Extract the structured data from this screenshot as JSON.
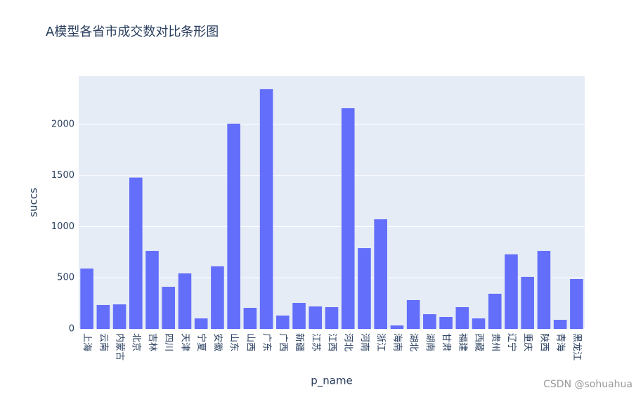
{
  "chart_data": {
    "type": "bar",
    "title": "A模型各省市成交数对比条形图",
    "x_label": "p_name",
    "y_label": "succs",
    "categories": [
      "上海",
      "云南",
      "内蒙古",
      "北京",
      "吉林",
      "四川",
      "天津",
      "宁夏",
      "安徽",
      "山东",
      "山西",
      "广东",
      "广西",
      "新疆",
      "江苏",
      "江西",
      "河北",
      "河南",
      "浙江",
      "海南",
      "湖北",
      "湖南",
      "甘肃",
      "福建",
      "西藏",
      "贵州",
      "辽宁",
      "重庆",
      "陕西",
      "青海",
      "黑龙江"
    ],
    "values": [
      590,
      234,
      240,
      1480,
      763,
      412,
      543,
      103,
      612,
      2007,
      206,
      2344,
      131,
      254,
      220,
      213,
      2158,
      790,
      1072,
      34,
      282,
      144,
      117,
      213,
      103,
      344,
      729,
      509,
      763,
      89,
      488
    ],
    "color": "#636efa",
    "background": "#e5ecf6",
    "ylim": [
      0,
      2474
    ],
    "yticks": [
      0,
      500,
      1000,
      1500,
      2000
    ],
    "grid": true
  },
  "watermark": "CSDN @sohuahua"
}
